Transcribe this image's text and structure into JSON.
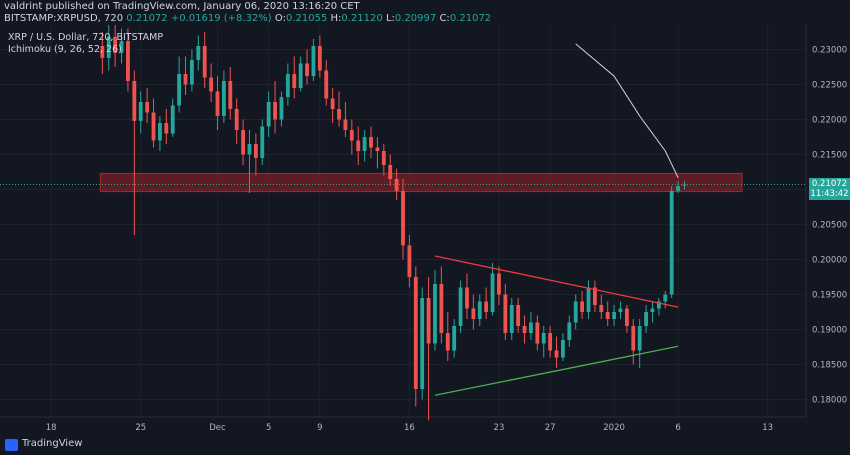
{
  "header": {
    "publisher": "valdrint published on TradingView.com, January 06, 2020 13:16:20 CET",
    "symbol": "BITSTAMP:XRPUSD, 720",
    "last": "0.21072",
    "change": "+0.01619 (+8.32%)",
    "open_label": "O:",
    "open": "0.21055",
    "high_label": "H:",
    "high": "0.21120",
    "low_label": "L:",
    "low": "0.20997",
    "close_label": "C:",
    "close": "0.21072"
  },
  "legend": {
    "pair": "XRP / U.S. Dollar, 720, BITSTAMP",
    "indicator": "Ichimoku (9, 26, 52, 26)"
  },
  "price_tag": {
    "price": "0.21072",
    "countdown": "11:43:42"
  },
  "footer": {
    "brand": "TradingView"
  },
  "colors": {
    "bg": "#131722",
    "up": "#26a69a",
    "down": "#ef5350",
    "grid": "#1e222d",
    "zone": "#7a1f24",
    "upper_line": "#ef3b3b",
    "lower_line": "#4caf50",
    "ma": "#d1d4dc"
  },
  "chart_data": {
    "type": "candlestick",
    "ylim": [
      0.1775,
      0.2335
    ],
    "y_ticks": [
      "0.23000",
      "0.22500",
      "0.22000",
      "0.21500",
      "0.21000",
      "0.20500",
      "0.20000",
      "0.19500",
      "0.19000",
      "0.18500",
      "0.18000"
    ],
    "y_tick_values": [
      0.23,
      0.225,
      0.22,
      0.215,
      0.21,
      0.205,
      0.2,
      0.195,
      0.19,
      0.185,
      0.18
    ],
    "x_ticks": [
      {
        "label": "18",
        "date": "2019-11-18"
      },
      {
        "label": "25",
        "date": "2019-11-25"
      },
      {
        "label": "Dec",
        "date": "2019-12-01"
      },
      {
        "label": "5",
        "date": "2019-12-05"
      },
      {
        "label": "9",
        "date": "2019-12-09"
      },
      {
        "label": "16",
        "date": "2019-12-16"
      },
      {
        "label": "23",
        "date": "2019-12-23"
      },
      {
        "label": "27",
        "date": "2019-12-27"
      },
      {
        "label": "2020",
        "date": "2020-01-01"
      },
      {
        "label": "6",
        "date": "2020-01-06"
      },
      {
        "label": "13",
        "date": "2020-01-13"
      }
    ],
    "x_start": "2019-11-14",
    "x_end": "2020-01-16",
    "resistance_zone": [
      0.2097,
      0.2123
    ],
    "current_price": 0.21072,
    "upper_trendline": [
      {
        "date": "2019-12-18",
        "price": 0.2005
      },
      {
        "date": "2020-01-06",
        "price": 0.1932
      }
    ],
    "lower_trendline": [
      {
        "date": "2019-12-18",
        "price": 0.1806
      },
      {
        "date": "2020-01-06",
        "price": 0.1876
      }
    ],
    "ma_curve": [
      {
        "date": "2019-12-29",
        "price": 0.2308
      },
      {
        "date": "2020-01-01",
        "price": 0.2262
      },
      {
        "date": "2020-01-03",
        "price": 0.2205
      },
      {
        "date": "2020-01-05",
        "price": 0.2155
      },
      {
        "date": "2020-01-06",
        "price": 0.2117
      }
    ],
    "candles": [
      {
        "date": "2019-11-22",
        "o": 0.2305,
        "h": 0.2325,
        "l": 0.2265,
        "c": 0.2288
      },
      {
        "date": "2019-11-22 12:00",
        "o": 0.2288,
        "h": 0.2335,
        "l": 0.227,
        "c": 0.2318
      },
      {
        "date": "2019-11-23",
        "o": 0.2318,
        "h": 0.2335,
        "l": 0.2275,
        "c": 0.2295
      },
      {
        "date": "2019-11-23 12:00",
        "o": 0.2295,
        "h": 0.233,
        "l": 0.228,
        "c": 0.2312
      },
      {
        "date": "2019-11-24",
        "o": 0.2312,
        "h": 0.233,
        "l": 0.224,
        "c": 0.2255
      },
      {
        "date": "2019-11-24 12:00",
        "o": 0.2255,
        "h": 0.227,
        "l": 0.2035,
        "c": 0.2198
      },
      {
        "date": "2019-11-25",
        "o": 0.2198,
        "h": 0.224,
        "l": 0.218,
        "c": 0.2225
      },
      {
        "date": "2019-11-25 12:00",
        "o": 0.2225,
        "h": 0.2245,
        "l": 0.2195,
        "c": 0.221
      },
      {
        "date": "2019-11-26",
        "o": 0.221,
        "h": 0.223,
        "l": 0.216,
        "c": 0.217
      },
      {
        "date": "2019-11-26 12:00",
        "o": 0.217,
        "h": 0.2205,
        "l": 0.2155,
        "c": 0.2195
      },
      {
        "date": "2019-11-27",
        "o": 0.2195,
        "h": 0.2215,
        "l": 0.2165,
        "c": 0.218
      },
      {
        "date": "2019-11-27 12:00",
        "o": 0.218,
        "h": 0.223,
        "l": 0.2175,
        "c": 0.222
      },
      {
        "date": "2019-11-28",
        "o": 0.222,
        "h": 0.229,
        "l": 0.221,
        "c": 0.2265
      },
      {
        "date": "2019-11-28 12:00",
        "o": 0.2265,
        "h": 0.229,
        "l": 0.2235,
        "c": 0.225
      },
      {
        "date": "2019-11-29",
        "o": 0.225,
        "h": 0.23,
        "l": 0.224,
        "c": 0.2285
      },
      {
        "date": "2019-11-29 12:00",
        "o": 0.2285,
        "h": 0.232,
        "l": 0.227,
        "c": 0.2305
      },
      {
        "date": "2019-11-30",
        "o": 0.2305,
        "h": 0.2325,
        "l": 0.2245,
        "c": 0.226
      },
      {
        "date": "2019-11-30 12:00",
        "o": 0.226,
        "h": 0.228,
        "l": 0.2225,
        "c": 0.224
      },
      {
        "date": "2019-12-01",
        "o": 0.224,
        "h": 0.2262,
        "l": 0.2185,
        "c": 0.2205
      },
      {
        "date": "2019-12-01 12:00",
        "o": 0.2205,
        "h": 0.227,
        "l": 0.2195,
        "c": 0.2255
      },
      {
        "date": "2019-12-02",
        "o": 0.2255,
        "h": 0.2275,
        "l": 0.22,
        "c": 0.2215
      },
      {
        "date": "2019-12-02 12:00",
        "o": 0.2215,
        "h": 0.223,
        "l": 0.2165,
        "c": 0.2185
      },
      {
        "date": "2019-12-03",
        "o": 0.2185,
        "h": 0.22,
        "l": 0.2135,
        "c": 0.215
      },
      {
        "date": "2019-12-03 12:00",
        "o": 0.215,
        "h": 0.2185,
        "l": 0.2095,
        "c": 0.2165
      },
      {
        "date": "2019-12-04",
        "o": 0.2165,
        "h": 0.218,
        "l": 0.212,
        "c": 0.2145
      },
      {
        "date": "2019-12-04 12:00",
        "o": 0.2145,
        "h": 0.22,
        "l": 0.2135,
        "c": 0.219
      },
      {
        "date": "2019-12-05",
        "o": 0.219,
        "h": 0.224,
        "l": 0.2175,
        "c": 0.2225
      },
      {
        "date": "2019-12-05 12:00",
        "o": 0.2225,
        "h": 0.2255,
        "l": 0.218,
        "c": 0.22
      },
      {
        "date": "2019-12-06",
        "o": 0.22,
        "h": 0.224,
        "l": 0.219,
        "c": 0.2232
      },
      {
        "date": "2019-12-06 12:00",
        "o": 0.2232,
        "h": 0.228,
        "l": 0.222,
        "c": 0.2265
      },
      {
        "date": "2019-12-07",
        "o": 0.2265,
        "h": 0.229,
        "l": 0.223,
        "c": 0.2245
      },
      {
        "date": "2019-12-07 12:00",
        "o": 0.2245,
        "h": 0.229,
        "l": 0.224,
        "c": 0.228
      },
      {
        "date": "2019-12-08",
        "o": 0.228,
        "h": 0.23,
        "l": 0.225,
        "c": 0.2262
      },
      {
        "date": "2019-12-08 12:00",
        "o": 0.2262,
        "h": 0.2315,
        "l": 0.2255,
        "c": 0.2305
      },
      {
        "date": "2019-12-09",
        "o": 0.2305,
        "h": 0.232,
        "l": 0.226,
        "c": 0.227
      },
      {
        "date": "2019-12-09 12:00",
        "o": 0.227,
        "h": 0.2285,
        "l": 0.222,
        "c": 0.223
      },
      {
        "date": "2019-12-10",
        "o": 0.223,
        "h": 0.2245,
        "l": 0.2195,
        "c": 0.2215
      },
      {
        "date": "2019-12-10 12:00",
        "o": 0.2215,
        "h": 0.224,
        "l": 0.219,
        "c": 0.22
      },
      {
        "date": "2019-12-11",
        "o": 0.22,
        "h": 0.2225,
        "l": 0.2175,
        "c": 0.2185
      },
      {
        "date": "2019-12-11 12:00",
        "o": 0.2185,
        "h": 0.22,
        "l": 0.215,
        "c": 0.217
      },
      {
        "date": "2019-12-12",
        "o": 0.217,
        "h": 0.219,
        "l": 0.2135,
        "c": 0.2155
      },
      {
        "date": "2019-12-12 12:00",
        "o": 0.2155,
        "h": 0.2185,
        "l": 0.214,
        "c": 0.2175
      },
      {
        "date": "2019-12-13",
        "o": 0.2175,
        "h": 0.219,
        "l": 0.2145,
        "c": 0.216
      },
      {
        "date": "2019-12-13 12:00",
        "o": 0.216,
        "h": 0.2175,
        "l": 0.213,
        "c": 0.2155
      },
      {
        "date": "2019-12-14",
        "o": 0.2155,
        "h": 0.2165,
        "l": 0.212,
        "c": 0.2135
      },
      {
        "date": "2019-12-14 12:00",
        "o": 0.2135,
        "h": 0.215,
        "l": 0.2105,
        "c": 0.2115
      },
      {
        "date": "2019-12-15",
        "o": 0.2115,
        "h": 0.213,
        "l": 0.2085,
        "c": 0.2098
      },
      {
        "date": "2019-12-15 12:00",
        "o": 0.2098,
        "h": 0.2115,
        "l": 0.2,
        "c": 0.202
      },
      {
        "date": "2019-12-16",
        "o": 0.202,
        "h": 0.2035,
        "l": 0.196,
        "c": 0.1975
      },
      {
        "date": "2019-12-16 12:00",
        "o": 0.1975,
        "h": 0.199,
        "l": 0.179,
        "c": 0.1815
      },
      {
        "date": "2019-12-17",
        "o": 0.1815,
        "h": 0.196,
        "l": 0.18,
        "c": 0.1945
      },
      {
        "date": "2019-12-17 12:00",
        "o": 0.1945,
        "h": 0.1975,
        "l": 0.177,
        "c": 0.188
      },
      {
        "date": "2019-12-18",
        "o": 0.188,
        "h": 0.1985,
        "l": 0.187,
        "c": 0.1965
      },
      {
        "date": "2019-12-18 12:00",
        "o": 0.1965,
        "h": 0.199,
        "l": 0.188,
        "c": 0.1895
      },
      {
        "date": "2019-12-19",
        "o": 0.1895,
        "h": 0.1925,
        "l": 0.1855,
        "c": 0.187
      },
      {
        "date": "2019-12-19 12:00",
        "o": 0.187,
        "h": 0.1915,
        "l": 0.186,
        "c": 0.1905
      },
      {
        "date": "2019-12-20",
        "o": 0.1905,
        "h": 0.197,
        "l": 0.1895,
        "c": 0.196
      },
      {
        "date": "2019-12-20 12:00",
        "o": 0.196,
        "h": 0.198,
        "l": 0.1915,
        "c": 0.193
      },
      {
        "date": "2019-12-21",
        "o": 0.193,
        "h": 0.195,
        "l": 0.19,
        "c": 0.1915
      },
      {
        "date": "2019-12-21 12:00",
        "o": 0.1915,
        "h": 0.195,
        "l": 0.1905,
        "c": 0.194
      },
      {
        "date": "2019-12-22",
        "o": 0.194,
        "h": 0.196,
        "l": 0.1915,
        "c": 0.1925
      },
      {
        "date": "2019-12-22 12:00",
        "o": 0.1925,
        "h": 0.1995,
        "l": 0.192,
        "c": 0.198
      },
      {
        "date": "2019-12-23",
        "o": 0.198,
        "h": 0.199,
        "l": 0.1935,
        "c": 0.195
      },
      {
        "date": "2019-12-23 12:00",
        "o": 0.195,
        "h": 0.1965,
        "l": 0.1885,
        "c": 0.1895
      },
      {
        "date": "2019-12-24",
        "o": 0.1895,
        "h": 0.1945,
        "l": 0.1885,
        "c": 0.1935
      },
      {
        "date": "2019-12-24 12:00",
        "o": 0.1935,
        "h": 0.1945,
        "l": 0.1895,
        "c": 0.1905
      },
      {
        "date": "2019-12-25",
        "o": 0.1905,
        "h": 0.192,
        "l": 0.188,
        "c": 0.1895
      },
      {
        "date": "2019-12-25 12:00",
        "o": 0.1895,
        "h": 0.1925,
        "l": 0.1885,
        "c": 0.191
      },
      {
        "date": "2019-12-26",
        "o": 0.191,
        "h": 0.192,
        "l": 0.187,
        "c": 0.188
      },
      {
        "date": "2019-12-26 12:00",
        "o": 0.188,
        "h": 0.1905,
        "l": 0.186,
        "c": 0.1895
      },
      {
        "date": "2019-12-27",
        "o": 0.1895,
        "h": 0.1905,
        "l": 0.186,
        "c": 0.187
      },
      {
        "date": "2019-12-27 12:00",
        "o": 0.187,
        "h": 0.189,
        "l": 0.1845,
        "c": 0.186
      },
      {
        "date": "2019-12-28",
        "o": 0.186,
        "h": 0.1895,
        "l": 0.1855,
        "c": 0.1885
      },
      {
        "date": "2019-12-28 12:00",
        "o": 0.1885,
        "h": 0.192,
        "l": 0.1875,
        "c": 0.191
      },
      {
        "date": "2019-12-29",
        "o": 0.191,
        "h": 0.195,
        "l": 0.19,
        "c": 0.194
      },
      {
        "date": "2019-12-29 12:00",
        "o": 0.194,
        "h": 0.1955,
        "l": 0.1915,
        "c": 0.1925
      },
      {
        "date": "2019-12-30",
        "o": 0.1925,
        "h": 0.197,
        "l": 0.1915,
        "c": 0.196
      },
      {
        "date": "2019-12-30 12:00",
        "o": 0.196,
        "h": 0.197,
        "l": 0.1925,
        "c": 0.1935
      },
      {
        "date": "2019-12-31",
        "o": 0.1935,
        "h": 0.195,
        "l": 0.1915,
        "c": 0.1925
      },
      {
        "date": "2019-12-31 12:00",
        "o": 0.1925,
        "h": 0.194,
        "l": 0.1905,
        "c": 0.1915
      },
      {
        "date": "2020-01-01",
        "o": 0.1915,
        "h": 0.1935,
        "l": 0.1905,
        "c": 0.1925
      },
      {
        "date": "2020-01-01 12:00",
        "o": 0.1925,
        "h": 0.194,
        "l": 0.1915,
        "c": 0.193
      },
      {
        "date": "2020-01-02",
        "o": 0.193,
        "h": 0.1935,
        "l": 0.1895,
        "c": 0.1905
      },
      {
        "date": "2020-01-02 12:00",
        "o": 0.1905,
        "h": 0.1915,
        "l": 0.185,
        "c": 0.187
      },
      {
        "date": "2020-01-03",
        "o": 0.187,
        "h": 0.1915,
        "l": 0.1845,
        "c": 0.1905
      },
      {
        "date": "2020-01-03 12:00",
        "o": 0.1905,
        "h": 0.1935,
        "l": 0.1895,
        "c": 0.1925
      },
      {
        "date": "2020-01-04",
        "o": 0.1925,
        "h": 0.194,
        "l": 0.191,
        "c": 0.193
      },
      {
        "date": "2020-01-04 12:00",
        "o": 0.193,
        "h": 0.1945,
        "l": 0.192,
        "c": 0.194
      },
      {
        "date": "2020-01-05",
        "o": 0.194,
        "h": 0.1955,
        "l": 0.193,
        "c": 0.195
      },
      {
        "date": "2020-01-05 12:00",
        "o": 0.195,
        "h": 0.2105,
        "l": 0.1945,
        "c": 0.2098
      },
      {
        "date": "2020-01-06",
        "o": 0.2098,
        "h": 0.2112,
        "l": 0.2095,
        "c": 0.2105
      },
      {
        "date": "2020-01-06 12:00",
        "o": 0.21055,
        "h": 0.2112,
        "l": 0.20997,
        "c": 0.21072
      }
    ]
  }
}
